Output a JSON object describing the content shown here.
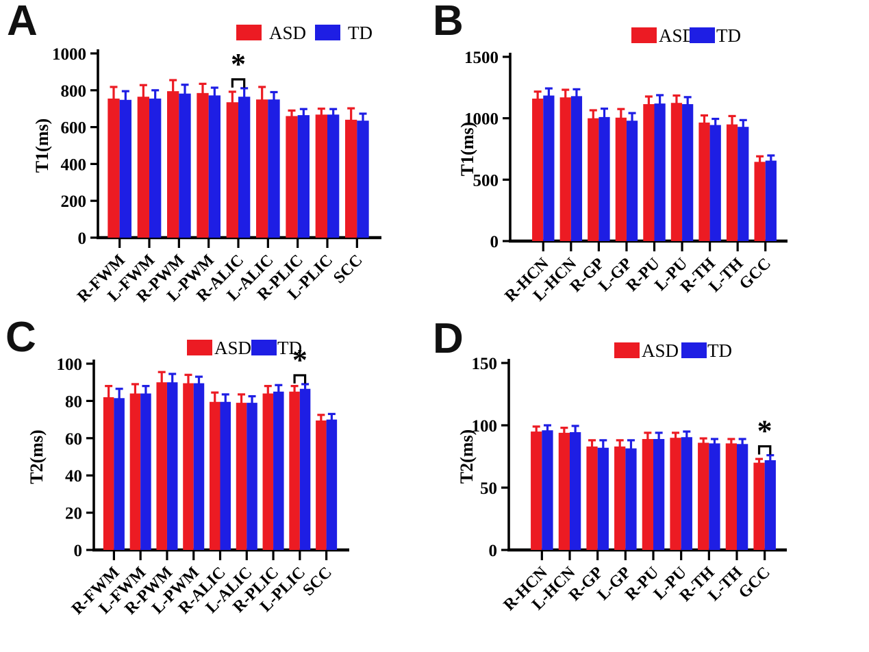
{
  "figure": {
    "type": "grouped-bar-figure",
    "panel_labels": [
      "A",
      "B",
      "C",
      "D"
    ]
  },
  "legend": {
    "entries": [
      {
        "label": "ASD",
        "color": "#EC1B23"
      },
      {
        "label": "TD",
        "color": "#1E1EE4"
      }
    ],
    "position": "top-right"
  },
  "colors": {
    "asd": "#EC1B23",
    "td": "#1E1EE4",
    "axis": "#000000"
  },
  "chart_data": [
    {
      "type": "bar",
      "panel": "A",
      "title": "",
      "xlabel": "",
      "ylabel": "T1(ms)",
      "ylim": [
        0,
        1000
      ],
      "yticks": [
        0,
        200,
        400,
        600,
        800,
        1000
      ],
      "grid": false,
      "legend_position": "top-right",
      "categories": [
        "R-FWM",
        "L-FWM",
        "R-PWM",
        "L-PWM",
        "R-ALIC",
        "L-ALIC",
        "R-PLIC",
        "L-PLIC",
        "SCC"
      ],
      "series": [
        {
          "name": "ASD",
          "color": "#EC1B23",
          "values": [
            755,
            765,
            795,
            785,
            735,
            750,
            660,
            668,
            640
          ],
          "errors": [
            63,
            63,
            60,
            50,
            57,
            68,
            30,
            32,
            62
          ]
        },
        {
          "name": "TD",
          "color": "#1E1EE4",
          "values": [
            748,
            755,
            782,
            772,
            765,
            750,
            665,
            668,
            635
          ],
          "errors": [
            47,
            45,
            48,
            42,
            46,
            40,
            33,
            30,
            38
          ]
        }
      ],
      "significance": [
        {
          "category": "R-ALIC",
          "symbol": "*"
        }
      ]
    },
    {
      "type": "bar",
      "panel": "B",
      "title": "",
      "xlabel": "",
      "ylabel": "T1(ms)",
      "ylim": [
        0,
        1500
      ],
      "yticks": [
        0,
        500,
        1000,
        1500
      ],
      "grid": false,
      "legend_position": "top-right",
      "categories": [
        "R-HCN",
        "L-HCN",
        "R-GP",
        "L-GP",
        "R-PU",
        "L-PU",
        "R-TH",
        "L-TH",
        "GCC"
      ],
      "series": [
        {
          "name": "ASD",
          "color": "#EC1B23",
          "values": [
            1160,
            1170,
            1000,
            1005,
            1115,
            1125,
            965,
            950,
            645
          ],
          "errors": [
            57,
            62,
            65,
            70,
            62,
            60,
            58,
            68,
            45
          ]
        },
        {
          "name": "TD",
          "color": "#1E1EE4",
          "values": [
            1185,
            1180,
            1010,
            980,
            1120,
            1115,
            945,
            930,
            655
          ],
          "errors": [
            58,
            56,
            68,
            62,
            68,
            57,
            50,
            55,
            42
          ]
        }
      ],
      "significance": []
    },
    {
      "type": "bar",
      "panel": "C",
      "title": "",
      "xlabel": "",
      "ylabel": "T2(ms)",
      "ylim": [
        0,
        100
      ],
      "yticks": [
        0,
        20,
        40,
        60,
        80,
        100
      ],
      "grid": false,
      "legend_position": "top-right",
      "categories": [
        "R-FWM",
        "L-FWM",
        "R-PWM",
        "L-PWM",
        "R-ALIC",
        "L-ALIC",
        "R-PLIC",
        "L-PLIC",
        "SCC"
      ],
      "series": [
        {
          "name": "ASD",
          "color": "#EC1B23",
          "values": [
            82,
            84,
            90,
            89.5,
            79.5,
            79,
            84,
            85,
            69.5
          ],
          "errors": [
            6,
            5,
            5.5,
            4.5,
            5,
            4.5,
            4,
            3,
            3
          ]
        },
        {
          "name": "TD",
          "color": "#1E1EE4",
          "values": [
            81.5,
            84,
            90,
            89.5,
            79.5,
            79,
            85,
            86.5,
            70
          ],
          "errors": [
            5,
            4,
            4.5,
            3.5,
            4,
            3.5,
            3.5,
            2.5,
            3
          ]
        }
      ],
      "significance": [
        {
          "category": "L-PLIC",
          "symbol": "*"
        }
      ]
    },
    {
      "type": "bar",
      "panel": "D",
      "title": "",
      "xlabel": "",
      "ylabel": "T2(ms)",
      "ylim": [
        0,
        150
      ],
      "yticks": [
        0,
        50,
        100,
        150
      ],
      "grid": false,
      "legend_position": "top-right",
      "categories": [
        "R-HCN",
        "L-HCN",
        "R-GP",
        "L-GP",
        "R-PU",
        "L-PU",
        "R-TH",
        "L-TH",
        "GCC"
      ],
      "series": [
        {
          "name": "ASD",
          "color": "#EC1B23",
          "values": [
            95,
            94,
            83,
            83,
            89,
            90,
            86,
            85.5,
            70
          ],
          "errors": [
            4,
            4,
            5,
            5,
            5,
            4,
            3.5,
            3.5,
            3
          ]
        },
        {
          "name": "TD",
          "color": "#1E1EE4",
          "values": [
            96,
            94.5,
            82,
            81.5,
            89,
            90.5,
            85.5,
            85,
            72
          ],
          "errors": [
            4,
            5,
            6,
            6.5,
            5,
            4.5,
            3.5,
            4,
            4
          ]
        }
      ],
      "significance": [
        {
          "category": "GCC",
          "symbol": "*"
        }
      ]
    }
  ]
}
